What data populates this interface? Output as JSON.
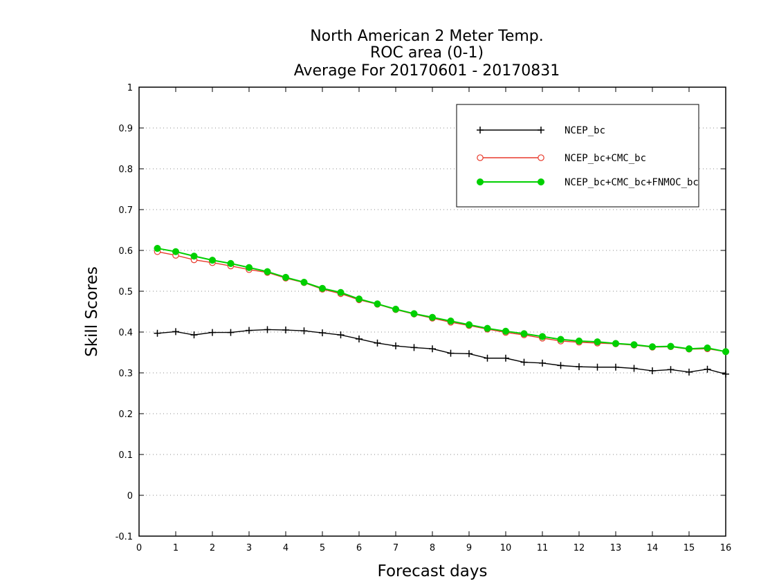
{
  "chart_data": {
    "type": "line",
    "title_lines": [
      "North American 2 Meter Temp.",
      "ROC area (0-1)",
      "Average For 20170601 - 20170831"
    ],
    "xlabel": "Forecast days",
    "ylabel": "Skill Scores",
    "xlim": [
      0,
      16
    ],
    "ylim": [
      -0.1,
      1
    ],
    "x_ticks": [
      0,
      1,
      2,
      3,
      4,
      5,
      6,
      7,
      8,
      9,
      10,
      11,
      12,
      13,
      14,
      15,
      16
    ],
    "y_ticks": [
      -0.1,
      0,
      0.1,
      0.2,
      0.3,
      0.4,
      0.5,
      0.6,
      0.7,
      0.8,
      0.9,
      1
    ],
    "y_tick_labels": [
      "-0.1",
      "0",
      "0.1",
      "0.2",
      "0.3",
      "0.4",
      "0.5",
      "0.6",
      "0.7",
      "0.8",
      "0.9",
      "1"
    ],
    "grid": "horizontal dotted",
    "legend_position": "top-right",
    "x": [
      0.5,
      1,
      1.5,
      2,
      2.5,
      3,
      3.5,
      4,
      4.5,
      5,
      5.5,
      6,
      6.5,
      7,
      7.5,
      8,
      8.5,
      9,
      9.5,
      10,
      10.5,
      11,
      11.5,
      12,
      12.5,
      13,
      13.5,
      14,
      14.5,
      15,
      15.5,
      16
    ],
    "series": [
      {
        "name": "NCEP_bc",
        "color": "#000000",
        "marker": "plus",
        "values": [
          0.397,
          0.401,
          0.393,
          0.399,
          0.399,
          0.404,
          0.406,
          0.405,
          0.403,
          0.398,
          0.393,
          0.383,
          0.373,
          0.366,
          0.362,
          0.359,
          0.348,
          0.347,
          0.336,
          0.336,
          0.326,
          0.324,
          0.318,
          0.315,
          0.314,
          0.314,
          0.311,
          0.305,
          0.308,
          0.302,
          0.309,
          0.297
        ]
      },
      {
        "name": "NCEP_bc+CMC_bc",
        "color": "#e8392b",
        "marker": "open-circle",
        "values": [
          0.597,
          0.588,
          0.577,
          0.57,
          0.562,
          0.553,
          0.546,
          0.532,
          0.521,
          0.505,
          0.494,
          0.479,
          0.468,
          0.455,
          0.444,
          0.434,
          0.424,
          0.416,
          0.407,
          0.399,
          0.393,
          0.385,
          0.378,
          0.375,
          0.373,
          0.371,
          0.368,
          0.363,
          0.364,
          0.358,
          0.359,
          0.352
        ]
      },
      {
        "name": "NCEP_bc+CMC_bc+FNMOC_bc",
        "color": "#00d000",
        "marker": "filled-circle",
        "values": [
          0.605,
          0.597,
          0.586,
          0.576,
          0.568,
          0.558,
          0.548,
          0.534,
          0.522,
          0.507,
          0.497,
          0.481,
          0.469,
          0.456,
          0.445,
          0.436,
          0.427,
          0.418,
          0.409,
          0.402,
          0.396,
          0.389,
          0.382,
          0.378,
          0.376,
          0.372,
          0.369,
          0.364,
          0.365,
          0.359,
          0.361,
          0.352
        ]
      }
    ]
  }
}
